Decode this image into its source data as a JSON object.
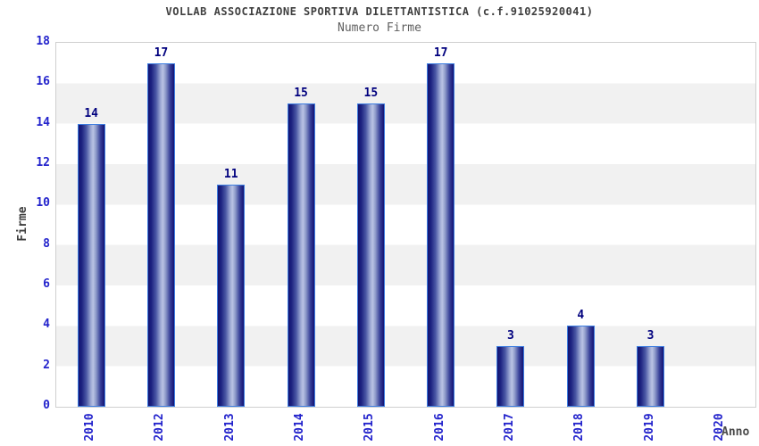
{
  "title": "VOLLAB ASSOCIAZIONE SPORTIVA DILETTANTISTICA (c.f.91025920041)",
  "subtitle": "Numero Firme",
  "chart_data": {
    "type": "bar",
    "title": "VOLLAB ASSOCIAZIONE SPORTIVA DILETTANTISTICA (c.f.91025920041)",
    "subtitle": "Numero Firme",
    "xlabel": "Anno",
    "ylabel": "Firme",
    "categories": [
      "2010",
      "2012",
      "2013",
      "2014",
      "2015",
      "2016",
      "2017",
      "2018",
      "2019",
      "2020"
    ],
    "values": [
      14,
      17,
      11,
      15,
      15,
      17,
      3,
      4,
      3,
      0
    ],
    "ylim": [
      0,
      18
    ],
    "yticks": [
      0,
      2,
      4,
      6,
      8,
      10,
      12,
      14,
      16,
      18
    ],
    "legend": "none",
    "grid": "alternating-horizontal-bands-every-2-units",
    "notes": "2020 has no bar and no value label"
  },
  "colors": {
    "background": "#ffffff",
    "band_gray": "#f1f1f1",
    "plot_border": "#cfcfcf",
    "axis_tick_blue": "#2323cc",
    "value_label_navy": "#00007e",
    "bar_edge_navy": "#131373",
    "bar_center_light": "#bac3e4",
    "bar_outline_blue": "#3d7de0",
    "title_color": "#3f3f3f",
    "subtitle_color": "#5f5f5f"
  }
}
